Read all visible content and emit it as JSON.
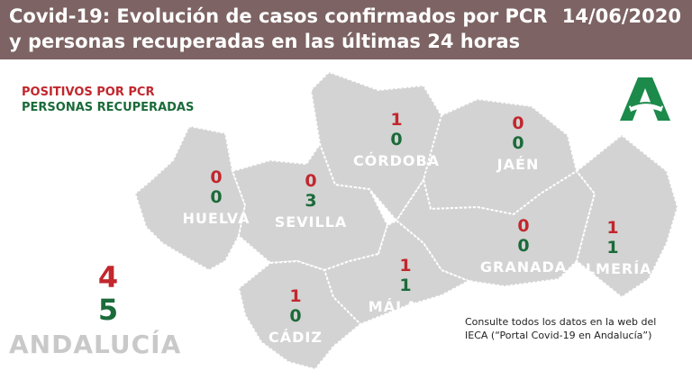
{
  "header": {
    "title": "Covid-19: Evolución de casos confirmados por PCR y personas recuperadas en las últimas 24 horas",
    "date": "14/06/2020"
  },
  "legend": {
    "positive": "POSITIVOS POR PCR",
    "recovered": "PERSONAS RECUPERADAS"
  },
  "colors": {
    "header_bg": "#7d6363",
    "positive": "#c1272d",
    "recovered": "#1b6b3a",
    "map_fill": "#d3d3d3",
    "logo": "#1b8a4b"
  },
  "provinces": [
    {
      "name": "HUELVA",
      "pcr": "0",
      "recovered": "0"
    },
    {
      "name": "SEVILLA",
      "pcr": "0",
      "recovered": "3"
    },
    {
      "name": "CÓRDOBA",
      "pcr": "1",
      "recovered": "0"
    },
    {
      "name": "JAÉN",
      "pcr": "0",
      "recovered": "0"
    },
    {
      "name": "GRANADA",
      "pcr": "0",
      "recovered": "0"
    },
    {
      "name": "ALMERÍA",
      "pcr": "1",
      "recovered": "1"
    },
    {
      "name": "MÁLAGA",
      "pcr": "1",
      "recovered": "1"
    },
    {
      "name": "CÁDIZ",
      "pcr": "1",
      "recovered": "0"
    }
  ],
  "total": {
    "name": "ANDALUCÍA",
    "pcr": "4",
    "recovered": "5"
  },
  "note": "Consulte todos los datos en la web del IECA (“Portal Covid-19 en Andalucía”)",
  "logo_icon": "junta-andalucia-logo-icon"
}
